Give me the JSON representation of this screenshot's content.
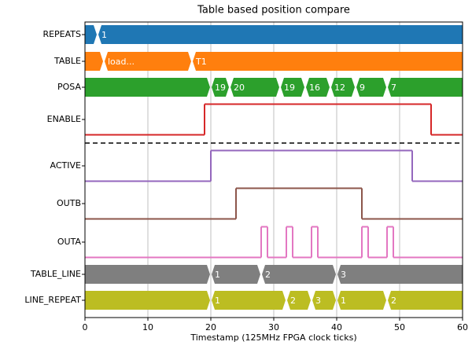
{
  "chart_data": {
    "type": "timing",
    "title": "Table based position compare",
    "x_label": "Timestamp (125MHz FPGA clock ticks)",
    "xlim": [
      0,
      60
    ],
    "xticks": [
      0,
      10,
      20,
      30,
      40,
      50,
      60
    ],
    "grid": true,
    "series": [
      {
        "name": "REPEATS",
        "kind": "bus",
        "color": "#1f77b4",
        "x": [
          0,
          2
        ],
        "labels": [
          null,
          "1"
        ]
      },
      {
        "name": "TABLE",
        "kind": "bus",
        "color": "#ff7f0e",
        "x": [
          0,
          3,
          17
        ],
        "labels": [
          null,
          "load...",
          "T1"
        ]
      },
      {
        "name": "POSA",
        "kind": "bus",
        "color": "#2ca02c",
        "x": [
          0,
          20,
          23,
          31,
          35,
          39,
          43,
          48
        ],
        "labels": [
          null,
          "19",
          "20",
          "19",
          "16",
          "12",
          "9",
          "7"
        ]
      },
      {
        "name": "ENABLE",
        "kind": "digital",
        "color": "#d62728",
        "x": [
          0,
          19,
          55
        ],
        "values": [
          0,
          1,
          0
        ]
      },
      {
        "name": "ACTIVE",
        "kind": "digital",
        "color": "#9467bd",
        "x": [
          0,
          20,
          52
        ],
        "values": [
          0,
          1,
          0
        ]
      },
      {
        "name": "OUTB",
        "kind": "digital",
        "color": "#8c564b",
        "x": [
          0,
          24,
          44
        ],
        "values": [
          0,
          1,
          0
        ]
      },
      {
        "name": "OUTA",
        "kind": "digital",
        "color": "#e377c2",
        "x": [
          0,
          28,
          29,
          32,
          33,
          36,
          37,
          44,
          45,
          48,
          49
        ],
        "values": [
          0,
          1,
          0,
          1,
          0,
          1,
          0,
          1,
          0,
          1,
          0
        ]
      },
      {
        "name": "TABLE_LINE",
        "kind": "bus",
        "color": "#7f7f7f",
        "x": [
          0,
          20,
          28,
          40
        ],
        "labels": [
          null,
          "1",
          "2",
          "3"
        ]
      },
      {
        "name": "LINE_REPEAT",
        "kind": "bus",
        "color": "#bcbd22",
        "x": [
          0,
          20,
          32,
          36,
          40,
          48
        ],
        "labels": [
          null,
          "1",
          "2",
          "3",
          "1",
          "2"
        ]
      }
    ]
  }
}
